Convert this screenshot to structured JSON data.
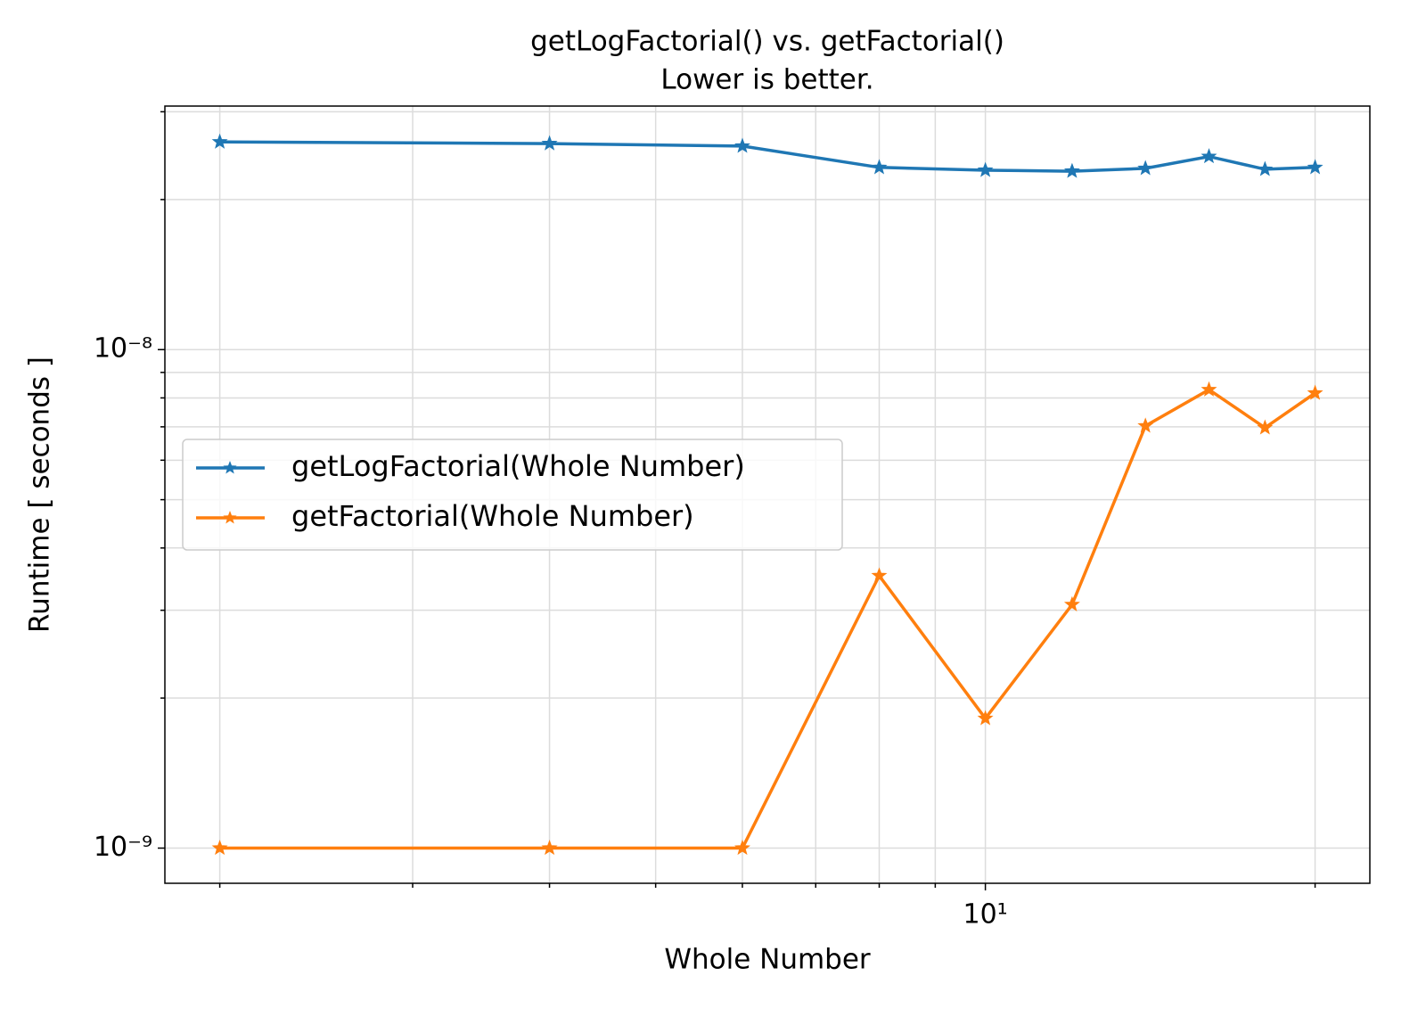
{
  "chart_data": {
    "type": "line",
    "title": "getLogFactorial() vs. getFactorial()",
    "subtitle": "Lower is better.",
    "xlabel": "Whole Number",
    "ylabel": "Runtime [ seconds ]",
    "x": [
      2,
      4,
      6,
      8,
      10,
      12,
      14,
      16,
      18,
      20
    ],
    "series": [
      {
        "name": "getLogFactorial(Whole Number)",
        "color": "#1f77b4",
        "values": [
          2.61e-08,
          2.59e-08,
          2.56e-08,
          2.32e-08,
          2.29e-08,
          2.28e-08,
          2.31e-08,
          2.44e-08,
          2.3e-08,
          2.32e-08
        ]
      },
      {
        "name": "getFactorial(Whole Number)",
        "color": "#ff7f0e",
        "values": [
          1e-09,
          1e-09,
          1e-09,
          3.52e-09,
          1.82e-09,
          3.08e-09,
          7.03e-09,
          8.31e-09,
          6.97e-09,
          8.18e-09
        ]
      }
    ],
    "xscale": "log",
    "yscale": "log",
    "xlim": [
      1.782,
      22.44
    ],
    "ylim": [
      8.5e-10,
      3.08e-08
    ],
    "xticks": [
      {
        "value": 10,
        "label": "10¹"
      }
    ],
    "xticks_minor": [
      2,
      3,
      4,
      5,
      6,
      7,
      8,
      9,
      20
    ],
    "yticks": [
      {
        "value": 1e-09,
        "label": "10⁻⁹"
      },
      {
        "value": 1e-08,
        "label": "10⁻⁸"
      }
    ],
    "yticks_minor": [
      2e-09,
      3e-09,
      4e-09,
      5e-09,
      6e-09,
      7e-09,
      8e-09,
      9e-09,
      2e-08,
      3e-08
    ],
    "grid": true,
    "legend": "center left",
    "marker": "star"
  }
}
